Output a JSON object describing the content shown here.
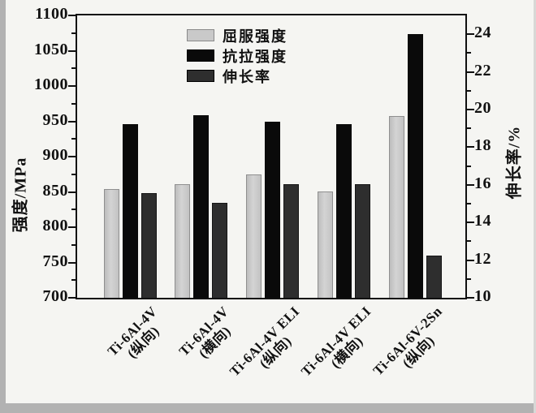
{
  "chart_data": {
    "type": "bar",
    "title": "",
    "categories": [
      {
        "name": "Ti-6Al-4V",
        "direction": "(纵向)"
      },
      {
        "name": "Ti-6Al-4V",
        "direction": "(横向)"
      },
      {
        "name": "Ti-6Al-4V ELI",
        "direction": "(纵向)"
      },
      {
        "name": "Ti-6Al-4V ELI",
        "direction": "(横向)"
      },
      {
        "name": "Ti-6Al-6V-2Sn",
        "direction": "(纵向)"
      }
    ],
    "series": [
      {
        "name": "屈服强度",
        "axis": "left",
        "unit": "MPa",
        "color": "#c9c9c9",
        "border": "#8f8f8f",
        "values": [
          853,
          860,
          873,
          849,
          956
        ]
      },
      {
        "name": "抗拉强度",
        "axis": "left",
        "unit": "MPa",
        "color": "#0a0a0a",
        "border": "#0a0a0a",
        "values": [
          945,
          958,
          948,
          945,
          1072
        ]
      },
      {
        "name": "伸长率",
        "axis": "right",
        "unit": "%",
        "color": "#2e2e2e",
        "border": "#161616",
        "values": [
          15.5,
          15.0,
          16.0,
          16.0,
          12.2
        ]
      }
    ],
    "left_axis": {
      "label": "强度/MPa",
      "min": 700,
      "max": 1100,
      "major_ticks": [
        700,
        750,
        800,
        850,
        900,
        950,
        1000,
        1050,
        1100
      ],
      "minor_step": 25
    },
    "right_axis": {
      "label": "伸长率/%",
      "min": 10,
      "max": 25,
      "major_ticks": [
        10,
        12,
        14,
        16,
        18,
        20,
        22,
        24
      ],
      "minor_step": 1
    },
    "legend_position": "top-center-inside",
    "grid": false,
    "bar_baseline_left": 700,
    "bar_baseline_right": 10
  }
}
